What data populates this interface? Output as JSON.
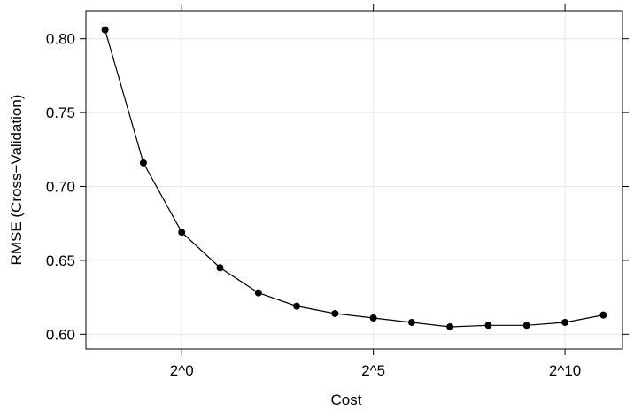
{
  "chart_data": {
    "type": "line",
    "title": "",
    "xlabel": "Cost",
    "ylabel": "RMSE (Cross−Validation)",
    "x_scale": "log2",
    "x_tick_labels": [
      "2^0",
      "2^5",
      "2^10"
    ],
    "x_tick_values": [
      1,
      32,
      1024
    ],
    "y_tick_labels": [
      "0.60",
      "0.65",
      "0.70",
      "0.75",
      "0.80"
    ],
    "y_tick_values": [
      0.6,
      0.65,
      0.7,
      0.75,
      0.8
    ],
    "xlim": [
      0.25,
      2048
    ],
    "ylim": [
      0.59,
      0.819
    ],
    "grid": true,
    "x": [
      0.25,
      0.5,
      1,
      2,
      4,
      8,
      16,
      32,
      64,
      128,
      256,
      512,
      1024,
      2048
    ],
    "series": [
      {
        "values": [
          0.806,
          0.716,
          0.669,
          0.645,
          0.628,
          0.619,
          0.614,
          0.611,
          0.608,
          0.605,
          0.606,
          0.606,
          0.608,
          0.613
        ]
      }
    ],
    "colors": {
      "line": "#000000",
      "points": "#000000",
      "grid": "#e6e6e6",
      "frame": "#000000"
    }
  }
}
